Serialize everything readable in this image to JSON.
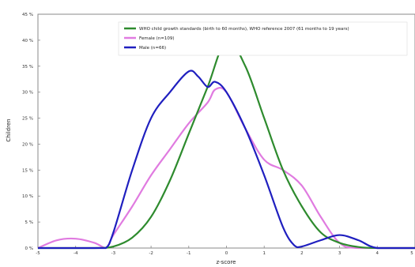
{
  "chart_data": {
    "type": "line",
    "xlabel": "z-score",
    "ylabel": "Children",
    "xlim": [
      -5,
      5
    ],
    "ylim": [
      0,
      45
    ],
    "x_ticks": [
      -5,
      -4,
      -3,
      -2,
      -1,
      0,
      1,
      2,
      3,
      4,
      5
    ],
    "y_ticks": [
      0,
      5,
      10,
      15,
      20,
      25,
      30,
      35,
      40,
      45
    ],
    "x_tick_labels": [
      "-5",
      "-4",
      "-3",
      "-2",
      "-1",
      "0",
      "1",
      "2",
      "3",
      "4",
      "5"
    ],
    "y_tick_labels": [
      "0 %",
      "5 %",
      "10 %",
      "15 %",
      "20 %",
      "25 %",
      "30 %",
      "35 %",
      "40 %",
      "45 %"
    ],
    "grid": false,
    "legend_position": "top-right",
    "series": [
      {
        "name": "WHO child growth standards (birth to 60 months), WHO reference 2007 (61 months to 19 years)",
        "color": "#2e8b2e",
        "x": [
          -5,
          -3.5,
          -3,
          -2.5,
          -2,
          -1.5,
          -1,
          -0.5,
          0,
          0.5,
          1,
          1.5,
          2,
          2.5,
          3,
          3.5,
          4,
          5
        ],
        "y": [
          0,
          0,
          0.3,
          2,
          6,
          13,
          22,
          31,
          40,
          35,
          25,
          15,
          8,
          3,
          1,
          0.2,
          0,
          0
        ]
      },
      {
        "name": "Female (n=109)",
        "color": "#e07be0",
        "x": [
          -5,
          -4.5,
          -4,
          -3.5,
          -3.2,
          -3,
          -2.5,
          -2,
          -1.5,
          -1,
          -0.5,
          -0.3,
          0,
          0.5,
          1,
          1.5,
          2,
          2.5,
          3,
          3.5,
          5
        ],
        "y": [
          0,
          1.5,
          1.8,
          1,
          0,
          2.5,
          8,
          14,
          19,
          24,
          28,
          30.5,
          30,
          23,
          17,
          15,
          12,
          6,
          1,
          0,
          0
        ]
      },
      {
        "name": "Male (n=66)",
        "color": "#1f1fbf",
        "x": [
          -5,
          -3.5,
          -3.2,
          -3,
          -2.5,
          -2,
          -1.5,
          -1,
          -0.75,
          -0.5,
          -0.3,
          0,
          0.5,
          1,
          1.5,
          1.8,
          2,
          2.5,
          3,
          3.5,
          4,
          5
        ],
        "y": [
          0,
          0,
          0,
          3,
          15,
          25,
          30,
          34,
          33,
          31,
          32,
          30,
          23,
          14,
          4,
          0.5,
          0.3,
          1.5,
          2.5,
          1.5,
          0,
          0
        ]
      }
    ]
  }
}
